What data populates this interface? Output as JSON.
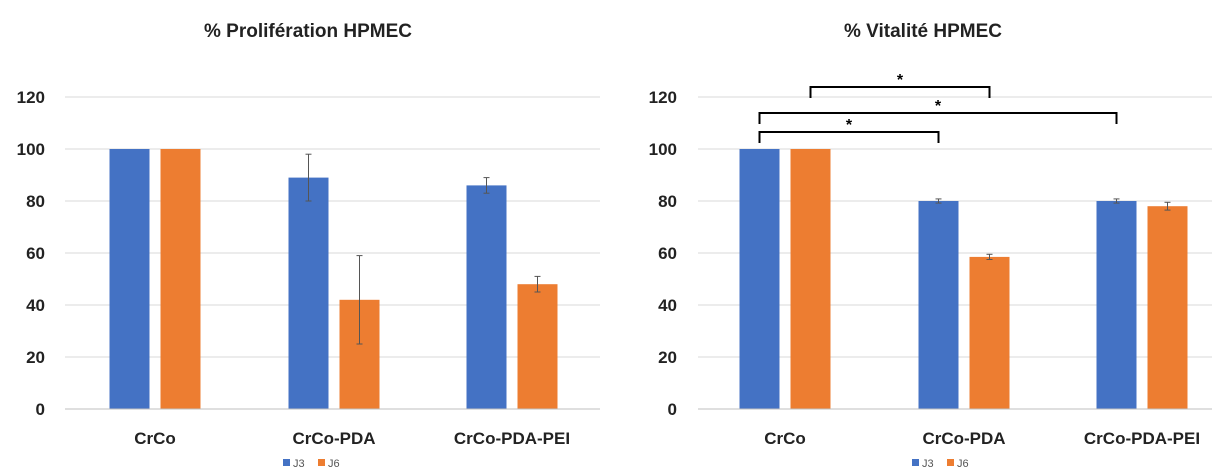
{
  "chart_data": [
    {
      "type": "bar",
      "title": "% Prolifération HPMEC",
      "categories": [
        "CrCo",
        "CrCo-PDA",
        "CrCo-PDA-PEI"
      ],
      "ylim": [
        0,
        120
      ],
      "yticks": [
        0,
        20,
        40,
        60,
        80,
        100,
        120
      ],
      "grid": true,
      "legend_position": "bottom",
      "series": [
        {
          "name": "J3",
          "color": "#4472C4",
          "values": [
            100,
            89,
            86
          ],
          "errors": [
            0,
            9,
            3
          ]
        },
        {
          "name": "J6",
          "color": "#ED7D31",
          "values": [
            100,
            42,
            48
          ],
          "errors": [
            0,
            17,
            3
          ]
        }
      ],
      "significance": []
    },
    {
      "type": "bar",
      "title": "% Vitalité HPMEC",
      "categories": [
        "CrCo",
        "CrCo-PDA",
        "CrCo-PDA-PEI"
      ],
      "ylim": [
        0,
        120
      ],
      "yticks": [
        0,
        20,
        40,
        60,
        80,
        100,
        120
      ],
      "grid": true,
      "legend_position": "bottom",
      "series": [
        {
          "name": "J3",
          "color": "#4472C4",
          "values": [
            100,
            80,
            80
          ],
          "errors": [
            0,
            0.8,
            0.8
          ]
        },
        {
          "name": "J6",
          "color": "#ED7D31",
          "values": [
            100,
            58.5,
            78
          ],
          "errors": [
            0,
            1,
            1.5
          ]
        }
      ],
      "significance": [
        {
          "from": {
            "category": 0,
            "series": 1
          },
          "to": {
            "category": 1,
            "series": 1
          },
          "label": "*"
        },
        {
          "from": {
            "category": 0,
            "series": 0
          },
          "to": {
            "category": 2,
            "series": 0
          },
          "label": "*"
        },
        {
          "from": {
            "category": 0,
            "series": 0
          },
          "to": {
            "category": 1,
            "series": 0
          },
          "label": "*"
        }
      ]
    }
  ]
}
